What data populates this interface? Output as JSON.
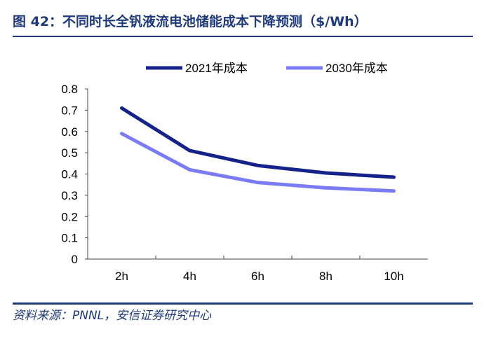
{
  "title": "图 42：不同时长全钒液流电池储能成本下降预测（$/Wh）",
  "source": "资料来源：PNNL，安信证券研究中心",
  "chart_data": {
    "type": "line",
    "categories": [
      "2h",
      "4h",
      "6h",
      "8h",
      "10h"
    ],
    "series": [
      {
        "name": "2021年成本",
        "values": [
          0.71,
          0.51,
          0.44,
          0.405,
          0.385
        ],
        "color": "#14228a"
      },
      {
        "name": "2030年成本",
        "values": [
          0.59,
          0.42,
          0.36,
          0.335,
          0.32
        ],
        "color": "#7b7cf5"
      }
    ],
    "yticks": [
      "0",
      "0.1",
      "0.2",
      "0.3",
      "0.4",
      "0.5",
      "0.6",
      "0.7",
      "0.8"
    ],
    "ylim": [
      0,
      0.8
    ],
    "legend": "top",
    "grid": false
  }
}
